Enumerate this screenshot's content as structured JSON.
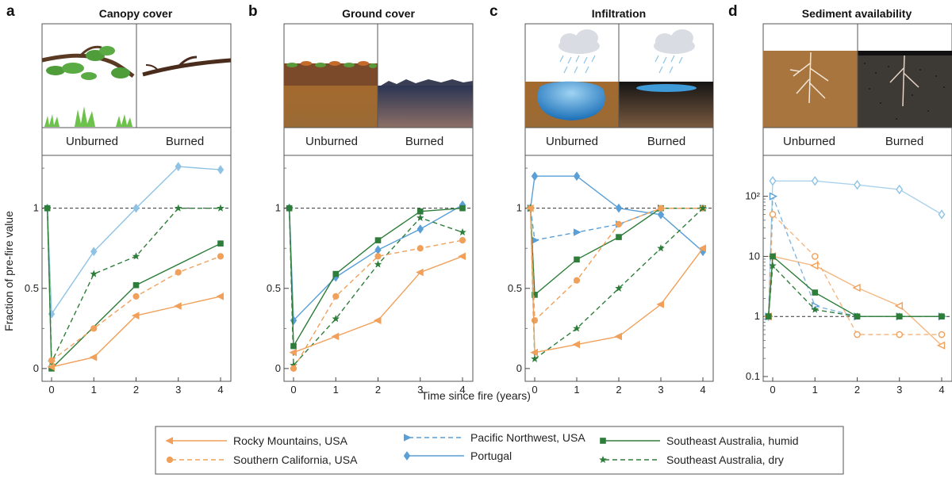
{
  "figure": {
    "xlabel": "Time since fire (years)",
    "ylabel": "Fraction of pre-fire value",
    "unburned_label": "Unburned",
    "burned_label": "Burned"
  },
  "colors": {
    "orange": "#f0a05a",
    "blue": "#5a9fd6",
    "light_blue": "#8ec3e6",
    "green": "#2e7d3a",
    "reference_line": "#333333"
  },
  "legend": [
    {
      "key": "rocky",
      "label": "Rocky Mountains, USA",
      "color": "#f0a05a",
      "dash": "solid",
      "marker": "tri-left"
    },
    {
      "key": "socal",
      "label": "Southern California, USA",
      "color": "#f0a05a",
      "dash": "dashed",
      "marker": "circle"
    },
    {
      "key": "pnw",
      "label": "Pacific Northwest, USA",
      "color": "#5a9fd6",
      "dash": "dashed",
      "marker": "tri-right"
    },
    {
      "key": "portugal",
      "label": "Portugal",
      "color": "#5a9fd6",
      "dash": "solid",
      "marker": "diamond"
    },
    {
      "key": "sea_humid",
      "label": "Southeast Australia, humid",
      "color": "#2e7d3a",
      "dash": "solid",
      "marker": "square"
    },
    {
      "key": "sea_dry",
      "label": "Southeast Australia, dry",
      "color": "#2e7d3a",
      "dash": "dashed",
      "marker": "star"
    }
  ],
  "chart_data": [
    {
      "letter": "a",
      "title": "Canopy cover",
      "type": "line",
      "scale": "linear",
      "xticks": [
        "0",
        "1",
        "2",
        "3",
        "4"
      ],
      "yticks": [
        0,
        0.5,
        1
      ],
      "ytick_labels": [
        "0",
        "0.5",
        "1"
      ],
      "ylim": [
        -0.05,
        1.3
      ],
      "reference": 1,
      "series": [
        {
          "key": "portugal",
          "x": [
            -0.1,
            0,
            1,
            2,
            3,
            4
          ],
          "y": [
            1,
            0.34,
            0.73,
            1.0,
            1.26,
            1.24
          ],
          "color": "#8ec3e6"
        },
        {
          "key": "sea_dry",
          "x": [
            -0.1,
            0,
            1,
            2,
            3,
            4
          ],
          "y": [
            1,
            0.04,
            0.59,
            0.7,
            1.0,
            1.0
          ]
        },
        {
          "key": "sea_humid",
          "x": [
            -0.1,
            0,
            2,
            4
          ],
          "y": [
            1,
            0.0,
            0.52,
            0.78
          ]
        },
        {
          "key": "socal",
          "x": [
            0,
            1,
            2,
            3,
            4
          ],
          "y": [
            0.05,
            0.25,
            0.45,
            0.6,
            0.7
          ]
        },
        {
          "key": "rocky",
          "x": [
            0,
            1,
            2,
            3,
            4
          ],
          "y": [
            0.01,
            0.07,
            0.33,
            0.39,
            0.45
          ]
        }
      ]
    },
    {
      "letter": "b",
      "title": "Ground cover",
      "type": "line",
      "scale": "linear",
      "xticks": [
        "0",
        "1",
        "2",
        "3",
        "4"
      ],
      "yticks": [
        0,
        0.5,
        1
      ],
      "ytick_labels": [
        "0",
        "0.5",
        "1"
      ],
      "ylim": [
        -0.05,
        1.3
      ],
      "reference": 1,
      "series": [
        {
          "key": "portugal",
          "x": [
            -0.1,
            0,
            1,
            2,
            3,
            4
          ],
          "y": [
            1,
            0.3,
            0.57,
            0.74,
            0.87,
            1.02
          ]
        },
        {
          "key": "sea_humid",
          "x": [
            -0.1,
            0,
            1,
            2,
            3,
            4
          ],
          "y": [
            1,
            0.14,
            0.59,
            0.8,
            0.98,
            1.0
          ]
        },
        {
          "key": "sea_dry",
          "x": [
            -0.1,
            0,
            1,
            2,
            3,
            4
          ],
          "y": [
            1,
            0.02,
            0.31,
            0.65,
            0.94,
            0.85
          ]
        },
        {
          "key": "socal",
          "x": [
            0,
            1,
            2,
            3,
            4
          ],
          "y": [
            0.0,
            0.45,
            0.7,
            0.75,
            0.8
          ]
        },
        {
          "key": "rocky",
          "x": [
            0,
            1,
            2,
            3,
            4
          ],
          "y": [
            0.1,
            0.2,
            0.3,
            0.6,
            0.7
          ]
        }
      ]
    },
    {
      "letter": "c",
      "title": "Infiltration",
      "type": "line",
      "scale": "linear",
      "xticks": [
        "0",
        "1",
        "2",
        "3",
        "4"
      ],
      "yticks": [
        0,
        0.5,
        1
      ],
      "ytick_labels": [
        "0",
        "0.5",
        "1"
      ],
      "ylim": [
        -0.05,
        1.3
      ],
      "reference": 1,
      "series": [
        {
          "key": "portugal",
          "x": [
            -0.1,
            0,
            1,
            2,
            3,
            4
          ],
          "y": [
            1,
            1.2,
            1.2,
            1.0,
            0.96,
            0.73
          ]
        },
        {
          "key": "pnw",
          "x": [
            -0.1,
            0,
            1,
            2,
            3,
            4
          ],
          "y": [
            1,
            0.8,
            0.85,
            0.9,
            1.0,
            1.0
          ]
        },
        {
          "key": "sea_humid",
          "x": [
            -0.1,
            0,
            1,
            2,
            3,
            4
          ],
          "y": [
            1,
            0.46,
            0.68,
            0.82,
            1.0,
            1.0
          ]
        },
        {
          "key": "socal",
          "x": [
            -0.1,
            0,
            1,
            2,
            3,
            4
          ],
          "y": [
            1,
            0.3,
            0.55,
            0.9,
            1.0,
            1.0
          ]
        },
        {
          "key": "sea_dry",
          "x": [
            -0.1,
            0,
            1,
            2,
            3,
            4
          ],
          "y": [
            1,
            0.06,
            0.25,
            0.5,
            0.75,
            1.0
          ]
        },
        {
          "key": "rocky",
          "x": [
            -0.1,
            0,
            1,
            2,
            3,
            4
          ],
          "y": [
            1,
            0.1,
            0.15,
            0.2,
            0.4,
            0.75
          ]
        }
      ]
    },
    {
      "letter": "d",
      "title": "Sediment availability",
      "type": "line",
      "scale": "log",
      "xticks": [
        "0",
        "1",
        "2",
        "3",
        "4"
      ],
      "yticks": [
        0.1,
        1,
        10,
        100
      ],
      "ytick_labels": [
        "0.1",
        "1",
        "10",
        "10²"
      ],
      "ylim": [
        0.1,
        400
      ],
      "reference": 1,
      "series": [
        {
          "key": "portugal",
          "x": [
            -0.1,
            0,
            1,
            2,
            3,
            4
          ],
          "y": [
            1,
            180,
            180,
            155,
            130,
            50
          ],
          "color": "#8ec3e6",
          "open": true
        },
        {
          "key": "pnw",
          "x": [
            -0.1,
            0,
            1,
            2,
            3,
            4
          ],
          "y": [
            1,
            100,
            1.5,
            1,
            1,
            1
          ],
          "open": true
        },
        {
          "key": "socal",
          "x": [
            -0.1,
            0,
            1,
            2,
            3,
            4
          ],
          "y": [
            1,
            50,
            10,
            0.5,
            0.5,
            0.5
          ],
          "open": true
        },
        {
          "key": "rocky",
          "x": [
            -0.1,
            0,
            1,
            2,
            3,
            4
          ],
          "y": [
            1,
            10,
            7,
            3,
            1.5,
            0.33
          ],
          "open": true
        },
        {
          "key": "sea_humid",
          "x": [
            -0.1,
            0,
            1,
            2,
            3,
            4
          ],
          "y": [
            1,
            10,
            2.5,
            1,
            1,
            1
          ]
        },
        {
          "key": "sea_dry",
          "x": [
            -0.1,
            0,
            1,
            2,
            3,
            4
          ],
          "y": [
            1,
            7,
            1.3,
            1,
            1,
            1
          ]
        }
      ]
    }
  ]
}
